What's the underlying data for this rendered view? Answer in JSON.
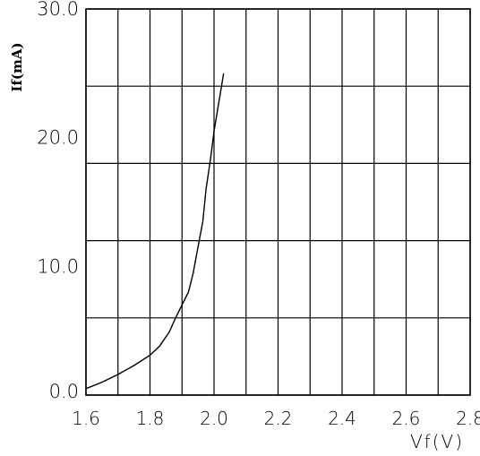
{
  "chart_data": {
    "type": "line",
    "title": "",
    "xlabel": "Vf(V)",
    "ylabel": "If(mA)",
    "xlim": [
      1.6,
      2.8
    ],
    "ylim": [
      0,
      30
    ],
    "x_tick_values": [
      1.6,
      1.8,
      2.0,
      2.2,
      2.4,
      2.6,
      2.8
    ],
    "x_tick_labels": [
      "1.6",
      "1.8",
      "2.0",
      "2.2",
      "2.4",
      "2.6",
      "2.8"
    ],
    "y_tick_values": [
      0,
      10,
      20,
      30
    ],
    "y_tick_labels": [
      "0.0",
      "10.0",
      "20.0",
      "30.0"
    ],
    "x_grid": [
      1.6,
      1.7,
      1.8,
      1.9,
      2.0,
      2.1,
      2.2,
      2.3,
      2.4,
      2.5,
      2.6,
      2.7,
      2.8
    ],
    "y_grid": [
      0,
      6,
      12,
      18,
      24,
      30
    ],
    "grid": true,
    "legend": false,
    "series": [
      {
        "x": [
          1.6,
          1.65,
          1.7,
          1.75,
          1.8,
          1.83,
          1.86,
          1.88,
          1.9,
          1.92,
          1.935,
          1.95,
          1.965,
          1.975,
          1.99,
          2.0,
          2.01,
          2.02,
          2.03
        ],
        "y": [
          0.5,
          1.0,
          1.6,
          2.3,
          3.1,
          3.8,
          4.9,
          6.0,
          7.0,
          8.0,
          9.5,
          11.5,
          13.5,
          16.0,
          18.5,
          20.5,
          22.0,
          23.5,
          25.0
        ]
      }
    ]
  }
}
